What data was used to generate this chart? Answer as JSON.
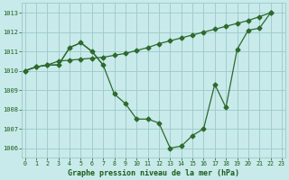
{
  "title": "Graphe pression niveau de la mer (hPa)",
  "x_main": [
    0,
    1,
    2,
    3,
    4,
    5,
    6,
    7,
    8,
    9,
    10,
    11,
    12,
    13,
    14,
    15,
    16,
    17,
    18,
    19,
    20,
    21,
    22
  ],
  "y_main": [
    1010.0,
    1010.2,
    1010.3,
    1010.3,
    1011.2,
    1011.45,
    1011.0,
    1010.3,
    1008.8,
    1008.3,
    1007.5,
    1007.5,
    1007.3,
    1006.0,
    1006.1,
    1006.65,
    1007.0,
    1009.3,
    1008.1,
    1011.1,
    1012.1,
    1012.2,
    1013.0
  ],
  "x_upper": [
    0,
    1,
    2,
    3,
    4,
    5,
    6,
    7,
    8,
    9,
    10,
    11,
    12,
    13,
    14,
    15,
    16,
    17,
    18,
    19,
    20,
    21,
    22
  ],
  "y_upper": [
    1010.0,
    1010.2,
    1010.3,
    1010.5,
    1010.55,
    1010.6,
    1010.65,
    1010.7,
    1010.8,
    1010.9,
    1011.05,
    1011.2,
    1011.4,
    1011.55,
    1011.7,
    1011.85,
    1012.0,
    1012.15,
    1012.3,
    1012.45,
    1012.6,
    1012.8,
    1013.0
  ],
  "x_mid": [
    0,
    1,
    2,
    3,
    4,
    5,
    6,
    7
  ],
  "y_mid": [
    1010.0,
    1010.2,
    1010.3,
    1010.3,
    1011.2,
    1011.45,
    1011.0,
    1010.3
  ],
  "ylim": [
    1005.5,
    1013.5
  ],
  "yticks": [
    1006,
    1007,
    1008,
    1009,
    1010,
    1011,
    1012,
    1013
  ],
  "xlim": [
    -0.3,
    23.3
  ],
  "xticks": [
    0,
    1,
    2,
    3,
    4,
    5,
    6,
    7,
    8,
    9,
    10,
    11,
    12,
    13,
    14,
    15,
    16,
    17,
    18,
    19,
    20,
    21,
    22,
    23
  ],
  "line_color": "#2d6a2d",
  "marker": "D",
  "marker_size": 2.5,
  "bg_color": "#c8eaea",
  "grid_color": "#9ec8c8",
  "label_color": "#1a5c1a",
  "tick_label_color": "#1a5c1a"
}
